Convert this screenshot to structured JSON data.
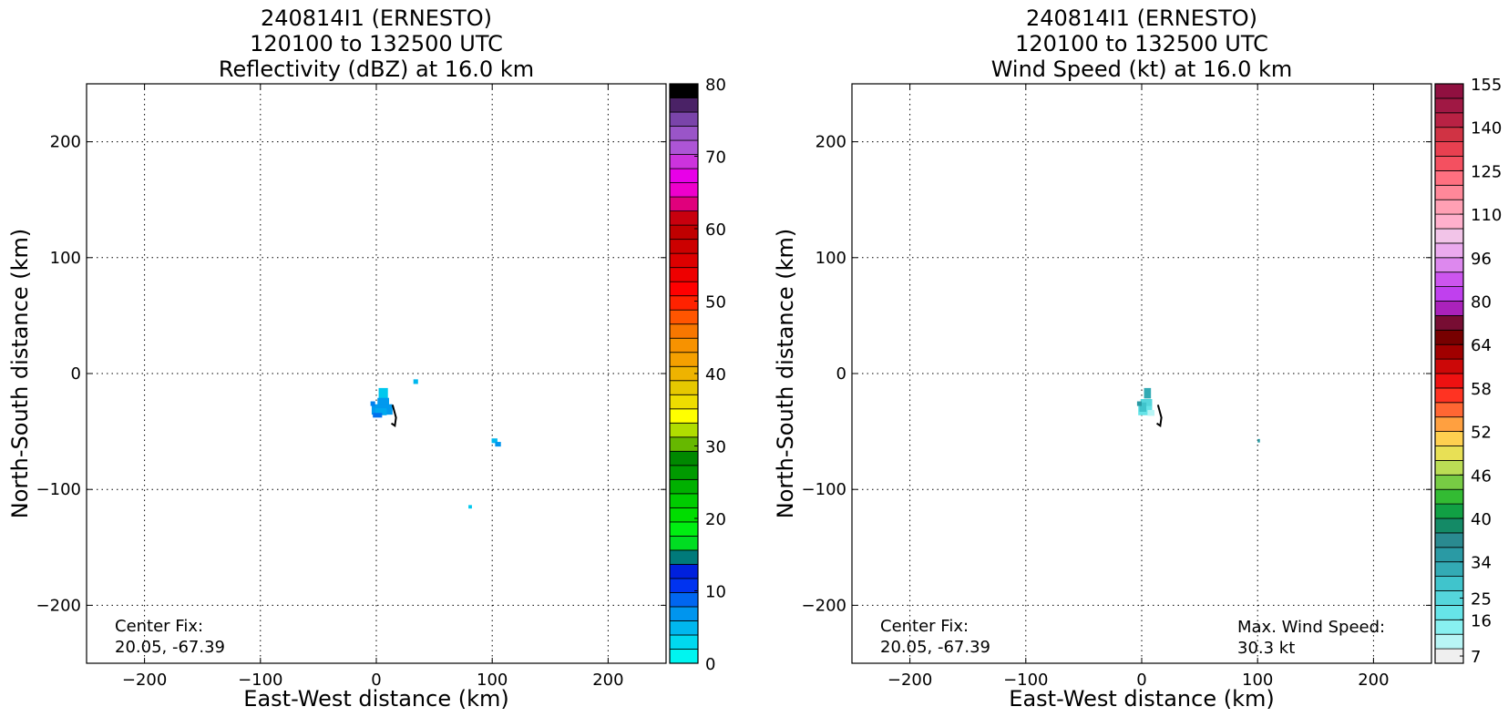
{
  "chart_data": [
    {
      "type": "heatmap",
      "title": [
        "240814I1 (ERNESTO)",
        "120100 to 132500 UTC",
        "Reflectivity (dBZ) at 16.0 km"
      ],
      "xlabel": "East-West distance (km)",
      "ylabel": "North-South distance (km)",
      "xlim": [
        -250,
        250
      ],
      "ylim": [
        -250,
        250
      ],
      "xticks": [
        -200,
        -100,
        0,
        100,
        200
      ],
      "yticks": [
        -200,
        -100,
        0,
        100,
        200
      ],
      "xtick_labels": [
        "−200",
        "−100",
        "0",
        "100",
        "200"
      ],
      "ytick_labels": [
        "−200",
        "−100",
        "0",
        "100",
        "200"
      ],
      "grid": true,
      "annotations": [
        {
          "text": [
            "Center Fix:",
            "20.05, -67.39"
          ],
          "position": "bottom-left"
        }
      ],
      "colorbar": {
        "label": "Reflectivity (dBZ)",
        "range": [
          0,
          80
        ],
        "ticks": [
          "0",
          "10",
          "20",
          "30",
          "40",
          "50",
          "60",
          "70",
          "80"
        ],
        "colors": [
          "#00f5f0",
          "#00d9ef",
          "#00b7ee",
          "#0095ee",
          "#0066f0",
          "#0033f0",
          "#0020dd",
          "#007a7a",
          "#00dd22",
          "#00ee11",
          "#00dd00",
          "#00cc00",
          "#00b000",
          "#009a00",
          "#008800",
          "#66b800",
          "#b0dd00",
          "#ffff00",
          "#eedd00",
          "#e6c800",
          "#eeb300",
          "#f5a000",
          "#f79200",
          "#f87700",
          "#ff5500",
          "#ff2200",
          "#ff0000",
          "#ee0000",
          "#dd0000",
          "#cc0000",
          "#c00000",
          "#c8000e",
          "#e0007c",
          "#ee00cc",
          "#e800e8",
          "#cc33dd",
          "#ad55d6",
          "#9a55c8",
          "#7a44aa",
          "#4a2266",
          "#000000"
        ]
      },
      "echoes_km": [
        {
          "x": 6,
          "y": -17,
          "w": 8,
          "h": 9,
          "color": "#00c8ee"
        },
        {
          "x": 6,
          "y": -25,
          "w": 10,
          "h": 8,
          "color": "#0099ee"
        },
        {
          "x": 5,
          "y": -31,
          "w": 18,
          "h": 9,
          "color": "#0099ee"
        },
        {
          "x": 4,
          "y": -33,
          "w": 10,
          "h": 6,
          "color": "#00a8ee"
        },
        {
          "x": -3,
          "y": -26,
          "w": 4,
          "h": 4,
          "color": "#0080ee"
        },
        {
          "x": 1,
          "y": -36,
          "w": 8,
          "h": 4,
          "color": "#0070ee"
        },
        {
          "x": 34,
          "y": -7,
          "w": 4,
          "h": 4,
          "color": "#00b7ee"
        },
        {
          "x": 102,
          "y": -58,
          "w": 5,
          "h": 4,
          "color": "#00b7ee"
        },
        {
          "x": 105,
          "y": -61,
          "w": 5,
          "h": 4,
          "color": "#0095ee"
        },
        {
          "x": 81,
          "y": -115,
          "w": 3,
          "h": 3,
          "color": "#00c8ee"
        }
      ],
      "track_km": [
        [
          14,
          -27
        ],
        [
          17,
          -38
        ],
        [
          16,
          -45
        ],
        [
          13,
          -43
        ]
      ]
    },
    {
      "type": "heatmap",
      "title": [
        "240814I1 (ERNESTO)",
        "120100 to 132500 UTC",
        "Wind Speed (kt) at 16.0 km"
      ],
      "xlabel": "East-West distance (km)",
      "ylabel": "North-South distance (km)",
      "xlim": [
        -250,
        250
      ],
      "ylim": [
        -250,
        250
      ],
      "xticks": [
        -200,
        -100,
        0,
        100,
        200
      ],
      "yticks": [
        -200,
        -100,
        0,
        100,
        200
      ],
      "xtick_labels": [
        "−200",
        "−100",
        "0",
        "100",
        "200"
      ],
      "ytick_labels": [
        "−200",
        "−100",
        "0",
        "100",
        "200"
      ],
      "grid": true,
      "annotations": [
        {
          "text": [
            "Center Fix:",
            "20.05, -67.39"
          ],
          "position": "bottom-left"
        },
        {
          "text": [
            "Max. Wind Speed:",
            "30.3 kt"
          ],
          "position": "bottom-right"
        }
      ],
      "max_wind_speed_kt": 30.3,
      "colorbar": {
        "label": "Wind Speed (kt)",
        "ticks": [
          "7",
          "16",
          "25",
          "34",
          "40",
          "46",
          "52",
          "58",
          "64",
          "80",
          "96",
          "110",
          "125",
          "140",
          "155"
        ],
        "colors": [
          "#efefef",
          "#b8f5f5",
          "#88f0f0",
          "#66e4e8",
          "#55d6dc",
          "#40c4cc",
          "#33aab4",
          "#2a9aa4",
          "#2a8a90",
          "#148a66",
          "#11a044",
          "#33bb33",
          "#77cc44",
          "#bbdd55",
          "#e8e055",
          "#ffd050",
          "#ffa040",
          "#ff6633",
          "#ff3322",
          "#ee1111",
          "#cc0808",
          "#a00000",
          "#770000",
          "#770d33",
          "#aa22bb",
          "#c040ee",
          "#cc55ee",
          "#dd88ee",
          "#ebaaee",
          "#f2c4e8",
          "#ffb0cc",
          "#ffa0b4",
          "#ff8899",
          "#ff7080",
          "#f45060",
          "#e84050",
          "#d03344",
          "#b82244",
          "#a01844",
          "#901040"
        ]
      },
      "echoes_km": [
        {
          "x": 5,
          "y": -17,
          "w": 6,
          "h": 9,
          "color": "#33aab4"
        },
        {
          "x": 4,
          "y": -26,
          "w": 10,
          "h": 8,
          "color": "#55d6dc"
        },
        {
          "x": 3,
          "y": -32,
          "w": 12,
          "h": 8,
          "color": "#66e4e8"
        },
        {
          "x": 1,
          "y": -29,
          "w": 6,
          "h": 8,
          "color": "#40c4cc"
        },
        {
          "x": -2,
          "y": -26,
          "w": 4,
          "h": 4,
          "color": "#2a9aa4"
        },
        {
          "x": 8,
          "y": -34,
          "w": 6,
          "h": 5,
          "color": "#b8f5f5"
        },
        {
          "x": 101,
          "y": -58,
          "w": 2,
          "h": 3,
          "color": "#2a9aa4"
        }
      ],
      "track_km": [
        [
          14,
          -27
        ],
        [
          17,
          -38
        ],
        [
          16,
          -45
        ],
        [
          13,
          -43
        ]
      ]
    }
  ]
}
